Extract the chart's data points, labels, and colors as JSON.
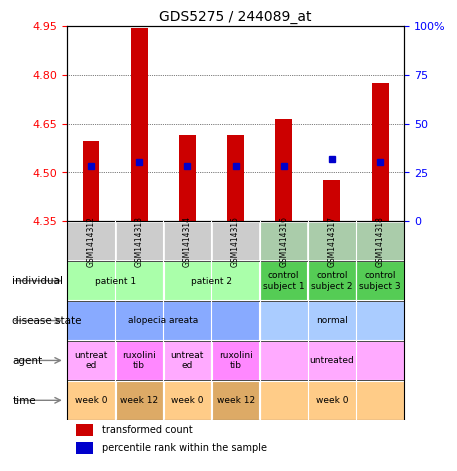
{
  "title": "GDS5275 / 244089_at",
  "samples": [
    "GSM1414312",
    "GSM1414313",
    "GSM1414314",
    "GSM1414315",
    "GSM1414316",
    "GSM1414317",
    "GSM1414318"
  ],
  "transformed_count": [
    4.595,
    4.945,
    4.615,
    4.615,
    4.665,
    4.475,
    4.775
  ],
  "percentile_rank": [
    28,
    30,
    28,
    28,
    28,
    32,
    30
  ],
  "ylim_left": [
    4.35,
    4.95
  ],
  "ylim_right": [
    0,
    100
  ],
  "yticks_left": [
    4.35,
    4.5,
    4.65,
    4.8,
    4.95
  ],
  "yticks_right": [
    0,
    25,
    50,
    75,
    100
  ],
  "bar_color": "#cc0000",
  "dot_color": "#0000cc",
  "bar_bottom": 4.35,
  "annotation_rows": {
    "individual": {
      "label": "individual",
      "groups": [
        {
          "cols": [
            0,
            1
          ],
          "text": "patient 1",
          "bg": "#aaffaa"
        },
        {
          "cols": [
            2,
            3
          ],
          "text": "patient 2",
          "bg": "#aaffaa"
        },
        {
          "cols": [
            4
          ],
          "text": "control\nsubject 1",
          "bg": "#55cc55"
        },
        {
          "cols": [
            5
          ],
          "text": "control\nsubject 2",
          "bg": "#55cc55"
        },
        {
          "cols": [
            6
          ],
          "text": "control\nsubject 3",
          "bg": "#55cc55"
        }
      ]
    },
    "disease_state": {
      "label": "disease state",
      "groups": [
        {
          "cols": [
            0,
            1,
            2,
            3
          ],
          "text": "alopecia areata",
          "bg": "#88aaff"
        },
        {
          "cols": [
            4,
            5,
            6
          ],
          "text": "normal",
          "bg": "#aaccff"
        }
      ]
    },
    "agent": {
      "label": "agent",
      "groups": [
        {
          "cols": [
            0
          ],
          "text": "untreat\ned",
          "bg": "#ffaaff"
        },
        {
          "cols": [
            1
          ],
          "text": "ruxolini\ntib",
          "bg": "#ff88ff"
        },
        {
          "cols": [
            2
          ],
          "text": "untreat\ned",
          "bg": "#ffaaff"
        },
        {
          "cols": [
            3
          ],
          "text": "ruxolini\ntib",
          "bg": "#ff88ff"
        },
        {
          "cols": [
            4,
            5,
            6
          ],
          "text": "untreated",
          "bg": "#ffaaff"
        }
      ]
    },
    "time": {
      "label": "time",
      "groups": [
        {
          "cols": [
            0
          ],
          "text": "week 0",
          "bg": "#ffcc88"
        },
        {
          "cols": [
            1
          ],
          "text": "week 12",
          "bg": "#ddaa66"
        },
        {
          "cols": [
            2
          ],
          "text": "week 0",
          "bg": "#ffcc88"
        },
        {
          "cols": [
            3
          ],
          "text": "week 12",
          "bg": "#ddaa66"
        },
        {
          "cols": [
            4,
            5,
            6
          ],
          "text": "week 0",
          "bg": "#ffcc88"
        }
      ]
    }
  },
  "gsm_bg": "#cccccc",
  "gsm_bg_right": "#aaccaa",
  "legend_items": [
    {
      "color": "#cc0000",
      "label": "transformed count"
    },
    {
      "color": "#0000cc",
      "label": "percentile rank within the sample"
    }
  ]
}
